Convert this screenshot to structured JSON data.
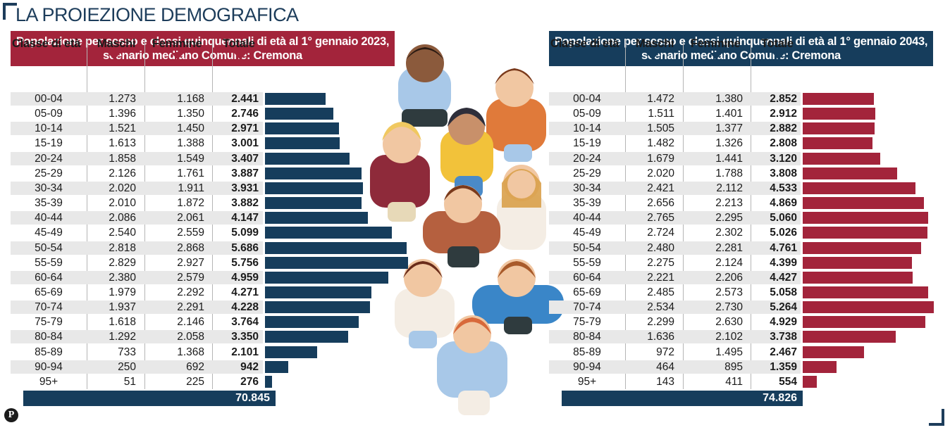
{
  "title": "LA PROIEZIONE DEMOGRAFICA",
  "colors": {
    "navy": "#163d5c",
    "crimson": "#a3243b",
    "shade": "#e8e8e8"
  },
  "columns": {
    "age": "Classe di età",
    "male": "Maschi",
    "female": "Femmine",
    "total": "Totale"
  },
  "logo": "P",
  "chart_data": [
    {
      "type": "bar",
      "title_line1": "Popolazione per sesso e classi quinquennali di età al 1° gennaio 2023,",
      "title_line2": "scenario mediano Comune: Cremona",
      "categories": [
        "00-04",
        "05-09",
        "10-14",
        "15-19",
        "20-24",
        "25-29",
        "30-34",
        "35-39",
        "40-44",
        "45-49",
        "50-54",
        "55-59",
        "60-64",
        "65-69",
        "70-74",
        "75-79",
        "80-84",
        "85-89",
        "90-94",
        "95+"
      ],
      "maschi": [
        "1.273",
        "1.396",
        "1.521",
        "1.613",
        "1.858",
        "2.126",
        "2.020",
        "2.010",
        "2.086",
        "2.540",
        "2.818",
        "2.829",
        "2.380",
        "1.979",
        "1.937",
        "1.618",
        "1.292",
        "733",
        "250",
        "51"
      ],
      "femmine": [
        "1.168",
        "1.350",
        "1.450",
        "1.388",
        "1.549",
        "1.761",
        "1.911",
        "1.872",
        "2.061",
        "2.559",
        "2.868",
        "2.927",
        "2.579",
        "2.292",
        "2.291",
        "2.146",
        "2.058",
        "1.368",
        "692",
        "225"
      ],
      "totale": [
        "2.441",
        "2.746",
        "2.971",
        "3.001",
        "3.407",
        "3.887",
        "3.931",
        "3.882",
        "4.147",
        "5.099",
        "5.686",
        "5.756",
        "4.959",
        "4.271",
        "4.228",
        "3.764",
        "3.350",
        "2.101",
        "942",
        "276"
      ],
      "values": [
        2441,
        2746,
        2971,
        3001,
        3407,
        3887,
        3931,
        3882,
        4147,
        5099,
        5686,
        5756,
        4959,
        4271,
        4228,
        3764,
        3350,
        2101,
        942,
        276
      ],
      "grand_total": "70.845",
      "color": "#163d5c"
    },
    {
      "type": "bar",
      "title_line1": "Popolazione per sesso e classi quinquennali di età al 1° gennaio 2043,",
      "title_line2": "scenario mediano Comune: Cremona",
      "categories": [
        "00-04",
        "05-09",
        "10-14",
        "15-19",
        "20-24",
        "25-29",
        "30-34",
        "35-39",
        "40-44",
        "45-49",
        "50-54",
        "55-59",
        "60-64",
        "65-69",
        "70-74",
        "75-79",
        "80-84",
        "85-89",
        "90-94",
        "95+"
      ],
      "maschi": [
        "1.472",
        "1.511",
        "1.505",
        "1.482",
        "1.679",
        "2.020",
        "2.421",
        "2.656",
        "2.765",
        "2.724",
        "2.480",
        "2.275",
        "2.221",
        "2.485",
        "2.534",
        "2.299",
        "1.636",
        "972",
        "464",
        "143"
      ],
      "femmine": [
        "1.380",
        "1.401",
        "1.377",
        "1.326",
        "1.441",
        "1.788",
        "2.112",
        "2.213",
        "2.295",
        "2.302",
        "2.281",
        "2.124",
        "2.206",
        "2.573",
        "2.730",
        "2.630",
        "2.102",
        "1.495",
        "895",
        "411"
      ],
      "totale": [
        "2.852",
        "2.912",
        "2.882",
        "2.808",
        "3.120",
        "3.808",
        "4.533",
        "4.869",
        "5.060",
        "5.026",
        "4.761",
        "4.399",
        "4.427",
        "5.058",
        "5.264",
        "4.929",
        "3.738",
        "2.467",
        "1.359",
        "554"
      ],
      "values": [
        2852,
        2912,
        2882,
        2808,
        3120,
        3808,
        4533,
        4869,
        5060,
        5026,
        4761,
        4399,
        4427,
        5058,
        5264,
        4929,
        3738,
        2467,
        1359,
        554
      ],
      "grand_total": "74.826",
      "color": "#a3243b"
    }
  ]
}
